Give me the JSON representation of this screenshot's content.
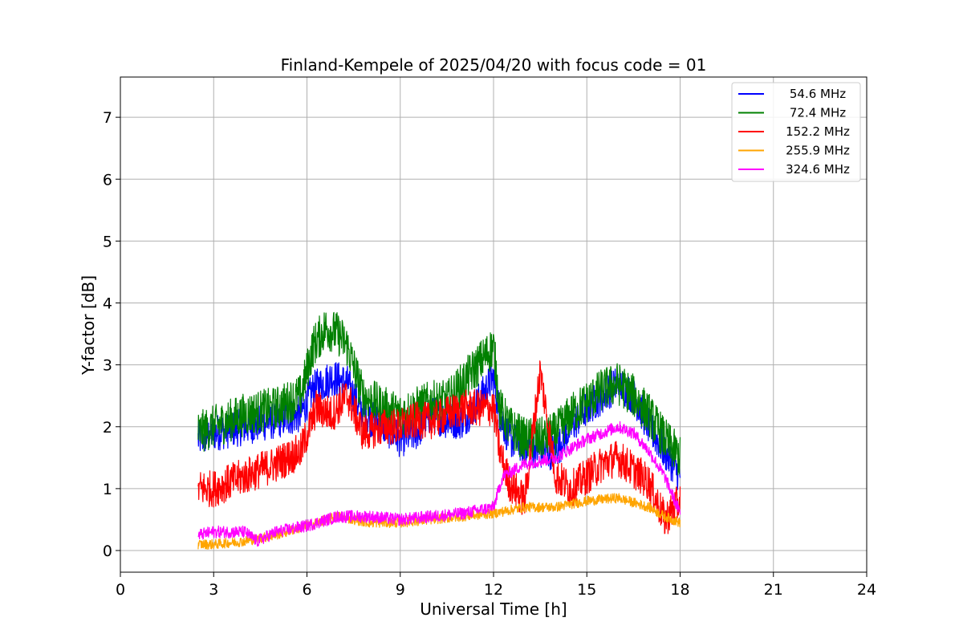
{
  "chart_data": {
    "type": "line",
    "title": "Finland-Kempele of 2025/04/20 with focus code = 01",
    "xlabel": "Universal Time [h]",
    "ylabel": "Y-factor [dB]",
    "xlim": [
      0,
      24
    ],
    "ylim": [
      -0.35,
      7.65
    ],
    "xticks": [
      0,
      3,
      6,
      9,
      12,
      15,
      18,
      21,
      24
    ],
    "yticks": [
      0,
      1,
      2,
      3,
      4,
      5,
      6,
      7
    ],
    "grid": true,
    "legend_position": "top-right",
    "series": [
      {
        "name": "54.6 MHz",
        "color": "#0000ff",
        "noise": 0.3,
        "points": [
          [
            2.5,
            1.8
          ],
          [
            3,
            1.9
          ],
          [
            4,
            2.0
          ],
          [
            5,
            2.1
          ],
          [
            5.8,
            2.2
          ],
          [
            6.2,
            2.6
          ],
          [
            6.8,
            2.8
          ],
          [
            7.3,
            2.7
          ],
          [
            7.8,
            2.2
          ],
          [
            8.5,
            2.0
          ],
          [
            9,
            1.8
          ],
          [
            9.5,
            1.9
          ],
          [
            10,
            2.2
          ],
          [
            10.5,
            2.1
          ],
          [
            11,
            2.1
          ],
          [
            11.5,
            2.4
          ],
          [
            12,
            2.8
          ],
          [
            12.2,
            2.2
          ],
          [
            12.5,
            1.8
          ],
          [
            13,
            1.7
          ],
          [
            13.5,
            1.6
          ],
          [
            14,
            1.6
          ],
          [
            14.5,
            2.0
          ],
          [
            15,
            2.3
          ],
          [
            15.5,
            2.5
          ],
          [
            16,
            2.7
          ],
          [
            16.5,
            2.5
          ],
          [
            17,
            2.0
          ],
          [
            17.5,
            1.6
          ],
          [
            18,
            1.2
          ]
        ]
      },
      {
        "name": "72.4 MHz",
        "color": "#008000",
        "noise": 0.35,
        "points": [
          [
            2.5,
            1.9
          ],
          [
            3,
            2.0
          ],
          [
            4,
            2.2
          ],
          [
            5,
            2.3
          ],
          [
            5.8,
            2.5
          ],
          [
            6.2,
            3.3
          ],
          [
            6.6,
            3.6
          ],
          [
            7,
            3.5
          ],
          [
            7.3,
            3.3
          ],
          [
            7.8,
            2.5
          ],
          [
            8.5,
            2.3
          ],
          [
            9,
            2.2
          ],
          [
            9.5,
            2.3
          ],
          [
            10,
            2.4
          ],
          [
            10.5,
            2.4
          ],
          [
            11,
            2.7
          ],
          [
            11.5,
            3.0
          ],
          [
            12,
            3.3
          ],
          [
            12.2,
            2.3
          ],
          [
            12.5,
            2.0
          ],
          [
            13,
            1.8
          ],
          [
            13.5,
            1.8
          ],
          [
            14,
            1.9
          ],
          [
            14.5,
            2.2
          ],
          [
            15,
            2.4
          ],
          [
            15.5,
            2.6
          ],
          [
            16,
            2.7
          ],
          [
            16.5,
            2.5
          ],
          [
            17,
            2.2
          ],
          [
            17.5,
            1.8
          ],
          [
            18,
            1.5
          ]
        ]
      },
      {
        "name": "152.2 MHz",
        "color": "#ff0000",
        "noise": 0.3,
        "points": [
          [
            2.5,
            1.0
          ],
          [
            3,
            1.0
          ],
          [
            4,
            1.2
          ],
          [
            5,
            1.4
          ],
          [
            5.8,
            1.6
          ],
          [
            6.3,
            2.3
          ],
          [
            6.8,
            2.2
          ],
          [
            7.3,
            2.5
          ],
          [
            7.8,
            1.9
          ],
          [
            8.5,
            2.0
          ],
          [
            9,
            2.0
          ],
          [
            9.5,
            2.1
          ],
          [
            10,
            2.1
          ],
          [
            10.5,
            2.2
          ],
          [
            11,
            2.3
          ],
          [
            11.5,
            2.3
          ],
          [
            12,
            2.3
          ],
          [
            12.2,
            1.6
          ],
          [
            12.5,
            1.1
          ],
          [
            13,
            0.8
          ],
          [
            13.5,
            2.9
          ],
          [
            14,
            1.2
          ],
          [
            14.5,
            1.0
          ],
          [
            15,
            1.2
          ],
          [
            15.5,
            1.4
          ],
          [
            16,
            1.5
          ],
          [
            16.5,
            1.3
          ],
          [
            17,
            1.1
          ],
          [
            17.5,
            0.5
          ],
          [
            18,
            0.8
          ]
        ]
      },
      {
        "name": "255.9 MHz",
        "color": "#ffa500",
        "noise": 0.08,
        "points": [
          [
            2.5,
            0.1
          ],
          [
            3,
            0.1
          ],
          [
            4,
            0.15
          ],
          [
            5,
            0.25
          ],
          [
            6,
            0.4
          ],
          [
            7,
            0.55
          ],
          [
            8,
            0.45
          ],
          [
            9,
            0.45
          ],
          [
            10,
            0.5
          ],
          [
            11,
            0.55
          ],
          [
            12,
            0.6
          ],
          [
            12.5,
            0.65
          ],
          [
            13,
            0.7
          ],
          [
            14,
            0.7
          ],
          [
            15,
            0.8
          ],
          [
            16,
            0.85
          ],
          [
            17,
            0.7
          ],
          [
            17.5,
            0.55
          ],
          [
            18,
            0.45
          ]
        ]
      },
      {
        "name": "324.6 MHz",
        "color": "#ff00ff",
        "noise": 0.1,
        "points": [
          [
            2.5,
            0.25
          ],
          [
            3,
            0.3
          ],
          [
            4,
            0.3
          ],
          [
            4.4,
            0.15
          ],
          [
            5,
            0.3
          ],
          [
            6,
            0.4
          ],
          [
            7,
            0.55
          ],
          [
            8,
            0.55
          ],
          [
            9,
            0.5
          ],
          [
            10,
            0.55
          ],
          [
            11,
            0.6
          ],
          [
            12,
            0.7
          ],
          [
            12.3,
            1.2
          ],
          [
            13,
            1.4
          ],
          [
            14,
            1.5
          ],
          [
            15,
            1.8
          ],
          [
            16,
            2.0
          ],
          [
            16.5,
            1.9
          ],
          [
            17,
            1.6
          ],
          [
            17.5,
            1.2
          ],
          [
            18,
            0.6
          ]
        ]
      }
    ]
  }
}
